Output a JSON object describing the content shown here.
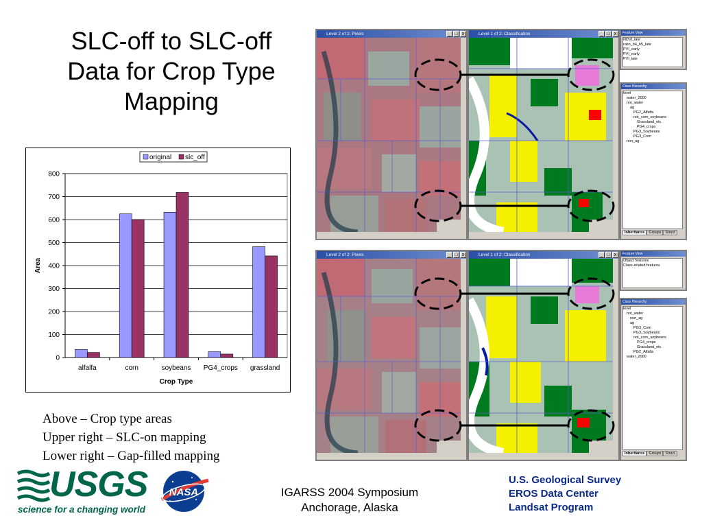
{
  "title": {
    "line1": "SLC-off to SLC-off",
    "line2": "Data for Crop Type",
    "line3": "Mapping"
  },
  "chart_data": {
    "type": "bar",
    "categories": [
      "alfalfa",
      "corn",
      "soybeans",
      "PG4_crops",
      "grassland"
    ],
    "series": [
      {
        "name": "original",
        "color": "#9999ff",
        "values": [
          35,
          625,
          632,
          25,
          482
        ]
      },
      {
        "name": "slc_off",
        "color": "#993366",
        "values": [
          22,
          600,
          718,
          15,
          442
        ]
      }
    ],
    "xlabel": "Crop Type",
    "ylabel": "Area",
    "ylim": [
      0,
      800
    ],
    "yticks": [
      0,
      100,
      200,
      300,
      400,
      500,
      600,
      700,
      800
    ],
    "grid": true,
    "legend_position": "top"
  },
  "captions": {
    "line1": "Above – Crop type areas",
    "line2": "Upper right – SLC-on mapping",
    "line3": "Lower right – Gap-filled mapping"
  },
  "footer": {
    "symposium": "IGARSS 2004 Symposium",
    "location": "Anchorage, Alaska",
    "org1": "U.S. Geological Survey",
    "org2": "EROS Data Center",
    "org3": "Landsat Program",
    "usgs_word": "USGS",
    "usgs_tagline": "science for a changing world",
    "nasa_word": "NASA"
  },
  "screens": {
    "upper": {
      "left_title": "Level 2 of 2: Pixels",
      "right_title": "Level 1 of 2: Classification",
      "features_title": "Feature View",
      "features": [
        "NDVI_late",
        "ratio_b4_b5_late",
        "PVI_early",
        "PVI_early",
        "PVI_late"
      ],
      "hierarchy_title": "Class Hierarchy",
      "classes": [
        "level",
        "water_2000",
        "not_water",
        "ag",
        "PG2_Alfalfa",
        "not_corn_soybeans",
        "Grassland_etc",
        "PG4_crops",
        "PG3_Soybeans",
        "PG3_Corn",
        "non_ag"
      ],
      "tabs": [
        "Inheritance",
        "Groups",
        "Struct"
      ]
    },
    "lower": {
      "left_title": "Level 2 of 2: Pixels",
      "right_title": "Level 1 of 2: Classification",
      "features_title": "Feature View",
      "features": [
        "Object features",
        "Class-related features"
      ],
      "hierarchy_title": "Class Hierarchy",
      "classes": [
        "level",
        "not_water",
        "non_ag",
        "ag",
        "PG3_Corn",
        "PG3_Soybeans",
        "not_corn_soybeans",
        "PG4_crops",
        "Grassland_etc",
        "PG2_Alfalfa",
        "water_2000"
      ],
      "tabs": [
        "Inheritance",
        "Groups",
        "Struct"
      ]
    }
  },
  "colors": {
    "title_text": "#000000",
    "footer_blue": "#0a2a8a",
    "usgs_green": "#00664a",
    "window_title_blue": "#2a4fa6",
    "false_color_red": "#b86a72",
    "class_yellow": "#f5f000",
    "class_green": "#007a1e",
    "class_gray": "#a9c2b4"
  }
}
